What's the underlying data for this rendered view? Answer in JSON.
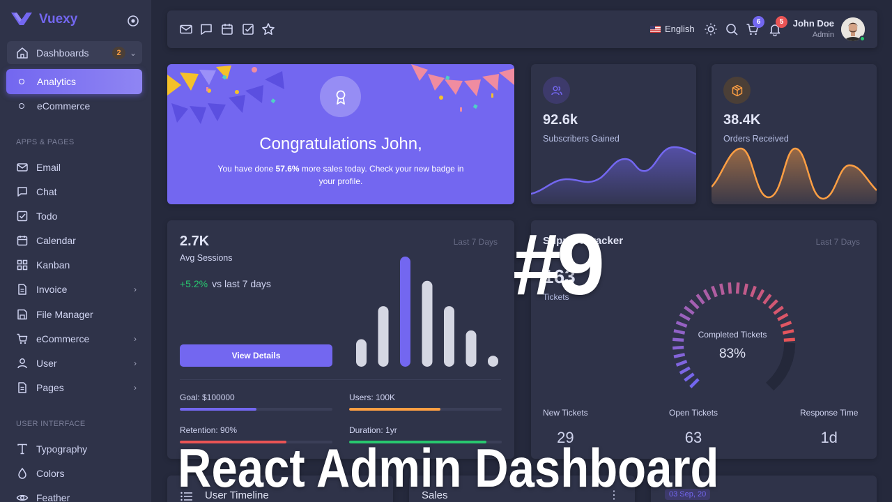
{
  "brand": {
    "name": "Vuexy"
  },
  "sidebar": {
    "dashboards": {
      "label": "Dashboards",
      "badge": "2"
    },
    "sub": [
      {
        "label": "Analytics"
      },
      {
        "label": "eCommerce"
      }
    ],
    "section_apps": "APPS & PAGES",
    "apps": [
      {
        "label": "Email",
        "icon": "mail-icon"
      },
      {
        "label": "Chat",
        "icon": "chat-icon"
      },
      {
        "label": "Todo",
        "icon": "todo-icon"
      },
      {
        "label": "Calendar",
        "icon": "calendar-icon"
      },
      {
        "label": "Kanban",
        "icon": "kanban-icon"
      },
      {
        "label": "Invoice",
        "icon": "invoice-icon"
      },
      {
        "label": "File Manager",
        "icon": "file-manager-icon"
      },
      {
        "label": "eCommerce",
        "icon": "cart-icon"
      },
      {
        "label": "User",
        "icon": "user-icon"
      },
      {
        "label": "Pages",
        "icon": "pages-icon"
      }
    ],
    "section_ui": "USER INTERFACE",
    "ui": [
      {
        "label": "Typography",
        "icon": "typography-icon"
      },
      {
        "label": "Colors",
        "icon": "droplet-icon"
      },
      {
        "label": "Feather",
        "icon": "eye-icon"
      }
    ]
  },
  "topbar": {
    "language": "English",
    "cart_badge": "6",
    "bell_badge": "5",
    "user_name": "John Doe",
    "user_role": "Admin"
  },
  "congrats": {
    "title": "Congratulations John,",
    "text_before": "You have done ",
    "highlight": "57.6%",
    "text_after": " more sales today. Check your new badge in your profile."
  },
  "subscribers": {
    "value": "92.6k",
    "label": "Subscribers Gained"
  },
  "orders": {
    "value": "38.4K",
    "label": "Orders Received"
  },
  "sessions": {
    "value": "2.7K",
    "label": "Avg Sessions",
    "range": "Last 7 Days",
    "delta": "+5.2%",
    "delta_text": "vs last 7 days",
    "button": "View Details",
    "bars": [
      25,
      55,
      100,
      78,
      55,
      33,
      10
    ],
    "highlight_index": 2,
    "metrics": [
      {
        "label": "Goal: $100000",
        "progress": 0.5,
        "color": "#7367f0"
      },
      {
        "label": "Users: 100K",
        "progress": 0.6,
        "color": "#ff9f43"
      },
      {
        "label": "Retention: 90%",
        "progress": 0.7,
        "color": "#ea5455"
      },
      {
        "label": "Duration: 1yr",
        "progress": 0.9,
        "color": "#28c76f"
      }
    ]
  },
  "support": {
    "title": "Support Tracker",
    "value": "163",
    "sub": "Tickets",
    "range": "Last 7 Days",
    "gauge_label": "Completed Tickets",
    "gauge_value": "83%",
    "tickets": [
      {
        "label": "New Tickets",
        "value": "29"
      },
      {
        "label": "Open Tickets",
        "value": "63"
      },
      {
        "label": "Response Time",
        "value": "1d"
      }
    ]
  },
  "bottom": {
    "timeline": "User Timeline",
    "sales": "Sales",
    "date": "03 Sep, 20"
  },
  "overlay": {
    "number": "#9",
    "headline": "React Admin Dashboard"
  },
  "colors": {
    "primary": "#7367f0",
    "success": "#28c76f",
    "warning": "#ff9f43",
    "danger": "#ea5455"
  }
}
